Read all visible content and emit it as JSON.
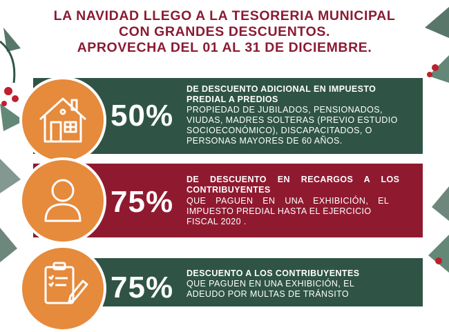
{
  "headline": {
    "line1": "LA NAVIDAD LLEGO A LA TESORERIA MUNICIPAL",
    "line2": "CON GRANDES DESCUENTOS.",
    "line3": "APROVECHA DEL 01 AL 31 DE DICIEMBRE."
  },
  "offers": [
    {
      "percent": "50%",
      "icon": "house-icon",
      "title_line1": "DE DESCUENTO ADICIONAL EN IMPUESTO",
      "title_line2": "PREDIAL A PREDIOS",
      "text_line1": "PROPIEDAD DE JUBILADOS, PENSIONADOS,",
      "text_line2": "VIUDAS, MADRES SOLTERAS (PREVIO ESTUDIO",
      "text_line3": "SOCIOECONÓMICO), DISCAPACITADOS, O",
      "text_line4": "PERSONAS MAYORES DE 60 AÑOS."
    },
    {
      "percent": "75%",
      "icon": "person-icon",
      "title_line1": "DE DESCUENTO EN RECARGOS A LOS",
      "title_line2": "CONTRIBUYENTES",
      "text_line1": "QUE PAGUEN EN UNA EXHIBICIÓN, EL",
      "text_line2": "IMPUESTO PREDIAL HASTA EL EJERCICIO",
      "text_line3": "FISCAL 2020 ."
    },
    {
      "percent": "75%",
      "icon": "clipboard-pen-icon",
      "title_line1": "DESCUENTO A LOS CONTRIBUYENTES",
      "text_line1": "QUE PAGUEN EN UNA EXHIBICIÓN, EL",
      "text_line2": "ADEUDO POR MULTAS DE TRÁNSITO"
    }
  ],
  "colors": {
    "headline": "#8a1b33",
    "green_band": "#2f5446",
    "red_band": "#8f1a30",
    "circle": "#e68a3c"
  }
}
